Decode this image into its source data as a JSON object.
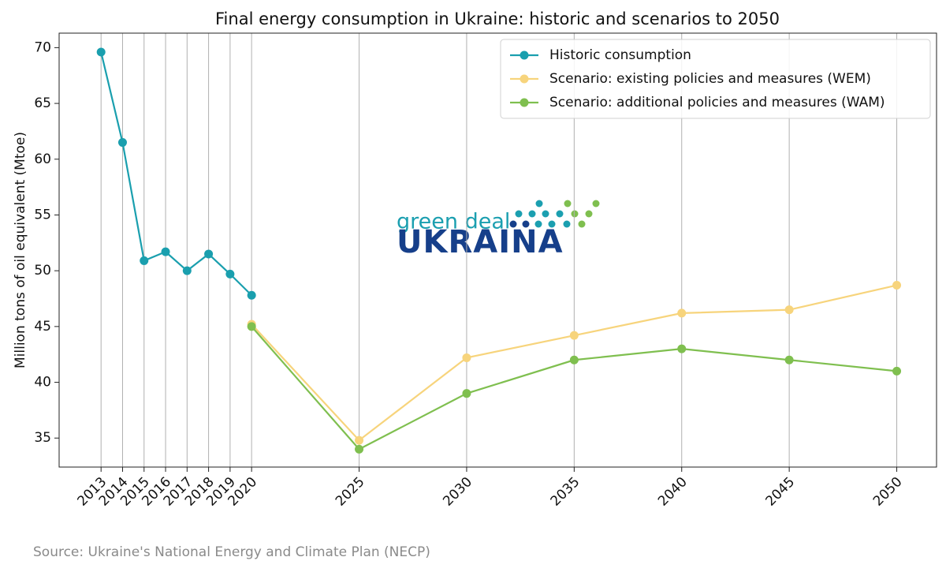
{
  "chart_data": {
    "type": "line",
    "title": "Final energy consumption in Ukraine: historic and scenarios to 2050",
    "y_label": "Million tons of oil equivalent (Mtoe)",
    "source": "Source: Ukraine's National Energy and Climate Plan (NECP)",
    "logo": {
      "top": "green deal",
      "main": "UKRAINA"
    },
    "x": [
      2013,
      2014,
      2015,
      2016,
      2017,
      2018,
      2019,
      2020,
      2025,
      2030,
      2035,
      2040,
      2045,
      2050
    ],
    "series": [
      {
        "name": "Historic consumption",
        "color": "#1a9fae",
        "values": [
          69.6,
          61.5,
          50.9,
          51.7,
          50.0,
          51.5,
          49.7,
          47.8,
          null,
          null,
          null,
          null,
          null,
          null
        ]
      },
      {
        "name": "Scenario: existing policies and measures (WEM)",
        "color": "#f7d47c",
        "values": [
          null,
          null,
          null,
          null,
          null,
          null,
          null,
          45.2,
          34.8,
          42.2,
          44.2,
          46.2,
          46.5,
          48.7
        ]
      },
      {
        "name": "Scenario: additional policies and measures (WAM)",
        "color": "#7fbf4f",
        "values": [
          null,
          null,
          null,
          null,
          null,
          null,
          null,
          45.0,
          34.0,
          39.0,
          42.0,
          43.0,
          42.0,
          41.0
        ]
      }
    ],
    "xlim": [
      2011.05,
      2051.85
    ],
    "ylim": [
      32.4,
      71.3
    ],
    "xticks": [
      2013,
      2014,
      2015,
      2016,
      2017,
      2018,
      2019,
      2020,
      2025,
      2030,
      2035,
      2040,
      2045,
      2050
    ],
    "yticks": [
      35,
      40,
      45,
      50,
      55,
      60,
      65,
      70
    ],
    "grid": "x",
    "legend": "upper right"
  }
}
